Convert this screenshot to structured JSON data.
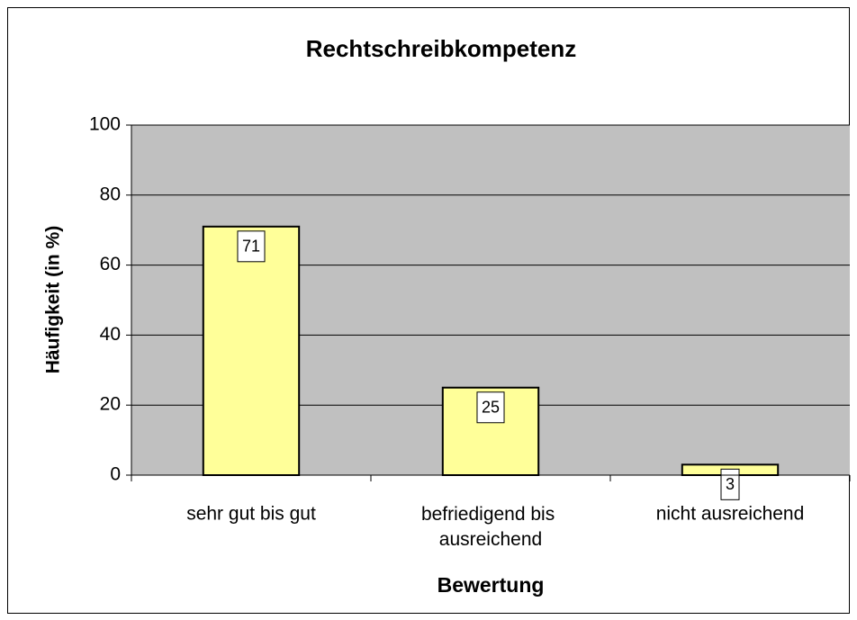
{
  "chart_data": {
    "type": "bar",
    "title": "Rechtschreibkompetenz",
    "categories": [
      "sehr gut bis gut",
      "befriedigend bis ausreichend",
      "nicht ausreichend"
    ],
    "values": [
      71,
      25,
      3
    ],
    "color": "#ffff99",
    "plot_background": "#c0c0c0",
    "xlabel": "Bewertung",
    "ylabel": "Häufigkeit (in %)",
    "ylim": [
      0,
      100
    ],
    "yticks": [
      0,
      20,
      40,
      60,
      80,
      100
    ],
    "grid": true
  }
}
